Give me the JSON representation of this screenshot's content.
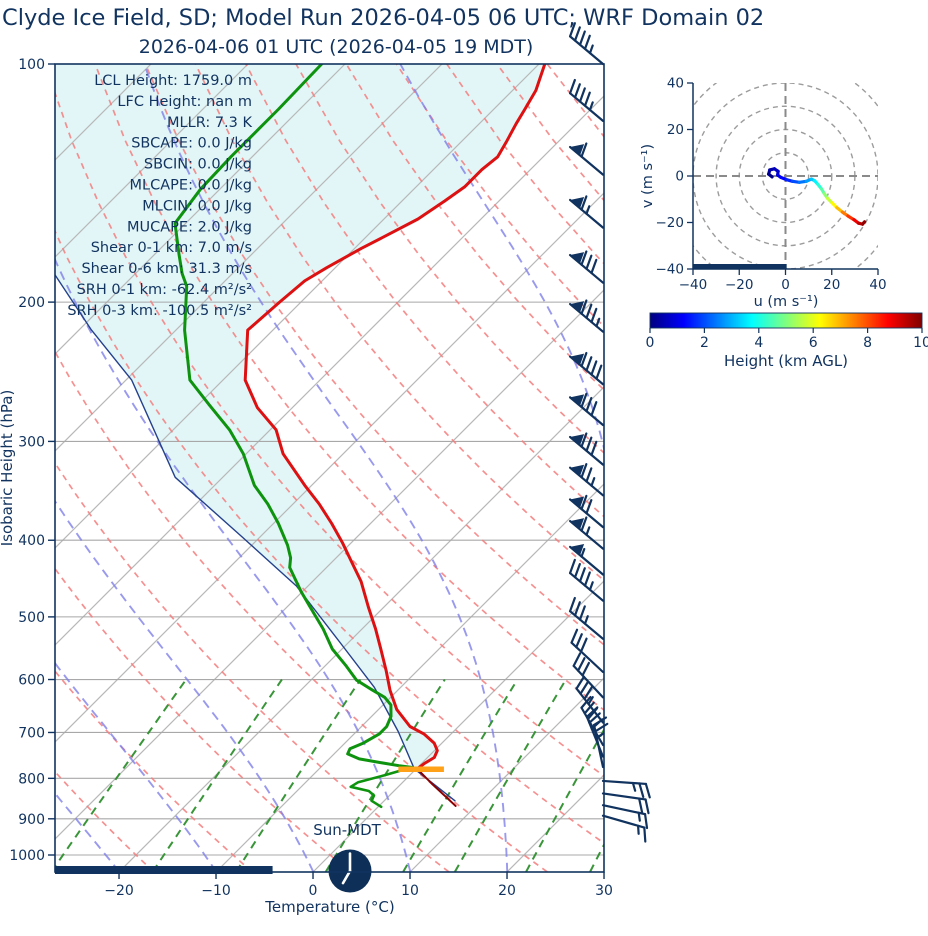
{
  "header": {
    "title": "Clyde Ice Field, SD; Model Run 2026-04-05 06 UTC; WRF Domain 02",
    "subtitle": "2026-04-06 01 UTC  (2026-04-05 19 MDT)"
  },
  "colors": {
    "navy_text": "#11335f",
    "temperature_line": "#dd1111",
    "dewpoint_line": "#0e930e",
    "parcel_line": "#24418c",
    "below_ground_temp": "#8b0000",
    "fill_region": "#e2f6f8",
    "isotherm_gray": "#b8b8b8",
    "pressure_gridline": "#a8a8a8",
    "dry_adiabat": "#f47c7c",
    "moist_adiabat": "#7f7fe8",
    "mixing_ratio": "#2d8f2d",
    "surface_marker": "#ffa21a",
    "hodo_ring": "#9c9c9c",
    "night_bar": "#11335f",
    "clock_face": "#0e2f57"
  },
  "skewt": {
    "xlabel": "Temperature (°C)",
    "ylabel": "Isobaric Height (hPa)",
    "sun_label": "Sun-MDT",
    "annotations": [
      "LCL Height: 1759.0 m",
      "LFC Height: nan m",
      "MLLR: 7.3 K",
      "SBCAPE: 0.0 J/kg",
      "SBCIN: 0.0 J/kg",
      "MLCAPE: 0.0 J/kg",
      "MLCIN: 0.0 J/kg",
      "MUCAPE: 2.0 J/kg",
      "Shear 0-1 km: 7.0 m/s",
      "Shear 0-6 km: 31.3 m/s",
      "SRH 0-1 km: -62.4 m²/s²",
      "SRH 0-3 km: -100.5 m²/s²"
    ]
  },
  "hodograph_labels": {
    "xlabel": "u (m s⁻¹)",
    "ylabel": "v (m s⁻¹)",
    "colorbar_label": "Height (km AGL)"
  },
  "chart_data": [
    {
      "type": "line",
      "variant": "skewt",
      "xlabel": "Temperature (°C)",
      "ylabel": "Isobaric Height (hPa)",
      "xlim": [
        -26.6,
        30
      ],
      "x_ticks": [
        -20,
        -10,
        0,
        10,
        20,
        30
      ],
      "p_ticks": [
        100,
        200,
        300,
        400,
        500,
        600,
        700,
        800,
        900,
        1000
      ],
      "plim": [
        100,
        1050
      ],
      "isotherms": {
        "start": -120,
        "end": 30,
        "step": 10
      },
      "dry_adiabats": {
        "start": -30,
        "end": 140,
        "step": 10
      },
      "moist_adiabats": {
        "start": -60,
        "end": 40,
        "step": 10
      },
      "mixing_ratios": [
        0.4,
        1,
        2,
        4,
        7,
        10,
        16,
        24,
        32
      ],
      "series": [
        {
          "name": "temperature",
          "points": [
            [
              100,
              -59.4
            ],
            [
              108,
              -57.6
            ],
            [
              114,
              -56.8
            ],
            [
              119,
              -56.2
            ],
            [
              125,
              -55.4
            ],
            [
              131,
              -54.7
            ],
            [
              136,
              -55.0
            ],
            [
              143,
              -55.0
            ],
            [
              149,
              -55.6
            ],
            [
              157,
              -56.5
            ],
            [
              166,
              -58.3
            ],
            [
              171,
              -59.3
            ],
            [
              181,
              -60.9
            ],
            [
              188,
              -61.8
            ],
            [
              200,
              -62.2
            ],
            [
              217,
              -62.6
            ],
            [
              251,
              -57.7
            ],
            [
              272,
              -53.6
            ],
            [
              290,
              -49.4
            ],
            [
              311,
              -46.2
            ],
            [
              341,
              -40.7
            ],
            [
              360,
              -37.3
            ],
            [
              381,
              -34.0
            ],
            [
              403,
              -30.9
            ],
            [
              426,
              -28.0
            ],
            [
              451,
              -25.0
            ],
            [
              486,
              -21.6
            ],
            [
              518,
              -18.6
            ],
            [
              549,
              -16.0
            ],
            [
              585,
              -13.2
            ],
            [
              619,
              -10.8
            ],
            [
              655,
              -8.1
            ],
            [
              688,
              -5.0
            ],
            [
              703,
              -2.8
            ],
            [
              722,
              -0.8
            ],
            [
              738,
              0.3
            ],
            [
              753,
              0.7
            ],
            [
              766,
              0.3
            ],
            [
              778,
              0.1
            ]
          ]
        },
        {
          "name": "temperature_below_ground",
          "points": [
            [
              778,
              0.1
            ],
            [
              812,
              3.1
            ],
            [
              867,
              7.9
            ]
          ]
        },
        {
          "name": "dewpoint",
          "points": [
            [
              100,
              -82.4
            ],
            [
              114,
              -82.2
            ],
            [
              131,
              -82.2
            ],
            [
              144,
              -82.0
            ],
            [
              159,
              -81.1
            ],
            [
              174,
              -77.5
            ],
            [
              184,
              -75.2
            ],
            [
              191,
              -73.4
            ],
            [
              217,
              -69.1
            ],
            [
              251,
              -63.4
            ],
            [
              270,
              -58.8
            ],
            [
              290,
              -54.2
            ],
            [
              311,
              -50.3
            ],
            [
              341,
              -45.9
            ],
            [
              360,
              -42.6
            ],
            [
              381,
              -39.5
            ],
            [
              406,
              -36.3
            ],
            [
              421,
              -34.7
            ],
            [
              433,
              -33.8
            ],
            [
              464,
              -30.2
            ],
            [
              486,
              -27.6
            ],
            [
              518,
              -24.0
            ],
            [
              549,
              -21.0
            ],
            [
              577,
              -17.8
            ],
            [
              601,
              -15.3
            ],
            [
              619,
              -12.6
            ],
            [
              632,
              -10.6
            ],
            [
              646,
              -9.2
            ],
            [
              668,
              -8.0
            ],
            [
              688,
              -7.4
            ],
            [
              703,
              -7.4
            ],
            [
              722,
              -8.1
            ],
            [
              734,
              -8.9
            ],
            [
              745,
              -8.6
            ],
            [
              756,
              -6.9
            ],
            [
              764,
              -4.4
            ],
            [
              771,
              -2.1
            ],
            [
              775,
              -0.6
            ]
          ]
        },
        {
          "name": "dewpoint_below_ground",
          "points": [
            [
              775,
              -0.6
            ],
            [
              793,
              -2.6
            ],
            [
              809,
              -4.6
            ],
            [
              820,
              -4.9
            ],
            [
              830,
              -2.6
            ],
            [
              841,
              -1.6
            ],
            [
              854,
              -1.3
            ],
            [
              869,
              0.3
            ]
          ]
        },
        {
          "name": "parcel",
          "points": [
            [
              184,
              -88.4
            ],
            [
              217,
              -78.7
            ],
            [
              251,
              -69.4
            ],
            [
              333,
              -54.9
            ],
            [
              397,
              -41.7
            ],
            [
              457,
              -31.2
            ],
            [
              541,
              -20.6
            ],
            [
              614,
              -12.7
            ],
            [
              698,
              -5.7
            ],
            [
              778,
              -0.2
            ]
          ]
        },
        {
          "name": "parcel_below_ground",
          "points": [
            [
              778,
              -0.2
            ],
            [
              854,
              7.3
            ]
          ]
        }
      ],
      "surface_marker": {
        "p": 779,
        "t_min": -1.8,
        "t_max": 2.9
      },
      "night_bar_t_range": [
        -26.6,
        1.5
      ],
      "clock_time_hours": 19,
      "wind_barbs": [
        {
          "p": 100,
          "dir": 140,
          "flags": 0,
          "full": 4,
          "half": 1
        },
        {
          "p": 118,
          "dir": 140,
          "flags": 0,
          "full": 4,
          "half": 1
        },
        {
          "p": 138,
          "dir": 140,
          "flags": 1,
          "full": 1,
          "half": 0
        },
        {
          "p": 161,
          "dir": 140,
          "flags": 1,
          "full": 1,
          "half": 1
        },
        {
          "p": 189,
          "dir": 140,
          "flags": 1,
          "full": 3,
          "half": 0
        },
        {
          "p": 218,
          "dir": 140,
          "flags": 1,
          "full": 3,
          "half": 1
        },
        {
          "p": 254,
          "dir": 140,
          "flags": 1,
          "full": 4,
          "half": 0
        },
        {
          "p": 286,
          "dir": 140,
          "flags": 1,
          "full": 3,
          "half": 0
        },
        {
          "p": 321,
          "dir": 140,
          "flags": 1,
          "full": 3,
          "half": 0
        },
        {
          "p": 351,
          "dir": 140,
          "flags": 1,
          "full": 2,
          "half": 1
        },
        {
          "p": 385,
          "dir": 140,
          "flags": 1,
          "full": 2,
          "half": 0
        },
        {
          "p": 410,
          "dir": 140,
          "flags": 1,
          "full": 1,
          "half": 1
        },
        {
          "p": 442,
          "dir": 140,
          "flags": 1,
          "full": 0,
          "half": 1
        },
        {
          "p": 477,
          "dir": 140,
          "flags": 0,
          "full": 4,
          "half": 1
        },
        {
          "p": 533,
          "dir": 140,
          "flags": 0,
          "full": 3,
          "half": 1
        },
        {
          "p": 587,
          "dir": 137,
          "flags": 0,
          "full": 3,
          "half": 0
        },
        {
          "p": 632,
          "dir": 133,
          "flags": 0,
          "full": 3,
          "half": 0
        },
        {
          "p": 680,
          "dir": 128,
          "flags": 0,
          "full": 3,
          "half": 1
        },
        {
          "p": 726,
          "dir": 120,
          "flags": 0,
          "full": 3,
          "half": 0
        },
        {
          "p": 751,
          "dir": 112,
          "flags": 0,
          "full": 3,
          "half": 0
        },
        {
          "p": 774,
          "dir": 102,
          "flags": 0,
          "full": 2,
          "half": 1
        },
        {
          "p": 806,
          "dir": 356,
          "flags": 0,
          "full": 2,
          "half": 1
        },
        {
          "p": 836,
          "dir": 352,
          "flags": 0,
          "full": 2,
          "half": 0
        },
        {
          "p": 865,
          "dir": 348,
          "flags": 0,
          "full": 1,
          "half": 1
        },
        {
          "p": 892,
          "dir": 344,
          "flags": 0,
          "full": 1,
          "half": 1
        }
      ]
    },
    {
      "type": "line",
      "variant": "hodograph",
      "xlabel": "u (m s⁻¹)",
      "ylabel": "v (m s⁻¹)",
      "xlim": [
        -40,
        40
      ],
      "ylim": [
        -40,
        40
      ],
      "ticks": [
        -40,
        -20,
        0,
        20,
        40
      ],
      "rings": [
        10,
        20,
        30,
        40,
        50
      ],
      "trace_u_v_height": [
        [
          -5.8,
          -0.4,
          0.05
        ],
        [
          -7.3,
          0.8,
          0.15
        ],
        [
          -6.8,
          2.6,
          0.3
        ],
        [
          -4.8,
          3.1,
          0.5
        ],
        [
          -3.2,
          2.0,
          0.7
        ],
        [
          -3.4,
          0.4,
          0.9
        ],
        [
          -2.0,
          -0.6,
          1.1
        ],
        [
          0.5,
          -1.6,
          1.4
        ],
        [
          3.0,
          -2.3,
          1.8
        ],
        [
          6.0,
          -2.7,
          2.2
        ],
        [
          9.0,
          -2.3,
          2.6
        ],
        [
          11.2,
          -1.3,
          3.0
        ],
        [
          12.6,
          -2.0,
          3.4
        ],
        [
          14.0,
          -3.6,
          3.9
        ],
        [
          15.6,
          -5.6,
          4.4
        ],
        [
          16.8,
          -7.6,
          4.9
        ],
        [
          18.2,
          -9.6,
          5.4
        ],
        [
          20.2,
          -11.6,
          6.0
        ],
        [
          22.2,
          -13.6,
          6.6
        ],
        [
          24.6,
          -15.5,
          7.2
        ],
        [
          27.0,
          -17.2,
          7.9
        ],
        [
          29.6,
          -18.8,
          8.6
        ],
        [
          31.6,
          -20.3,
          9.2
        ],
        [
          33.3,
          -20.7,
          9.6
        ],
        [
          34.2,
          -19.7,
          10.0
        ]
      ],
      "baseline_bar_u_range": [
        -40,
        0.5
      ],
      "colorbar": {
        "label": "Height (km AGL)",
        "ticks": [
          0,
          2,
          4,
          6,
          8,
          10
        ],
        "range": [
          0,
          10
        ],
        "cmap": "jet"
      }
    }
  ]
}
